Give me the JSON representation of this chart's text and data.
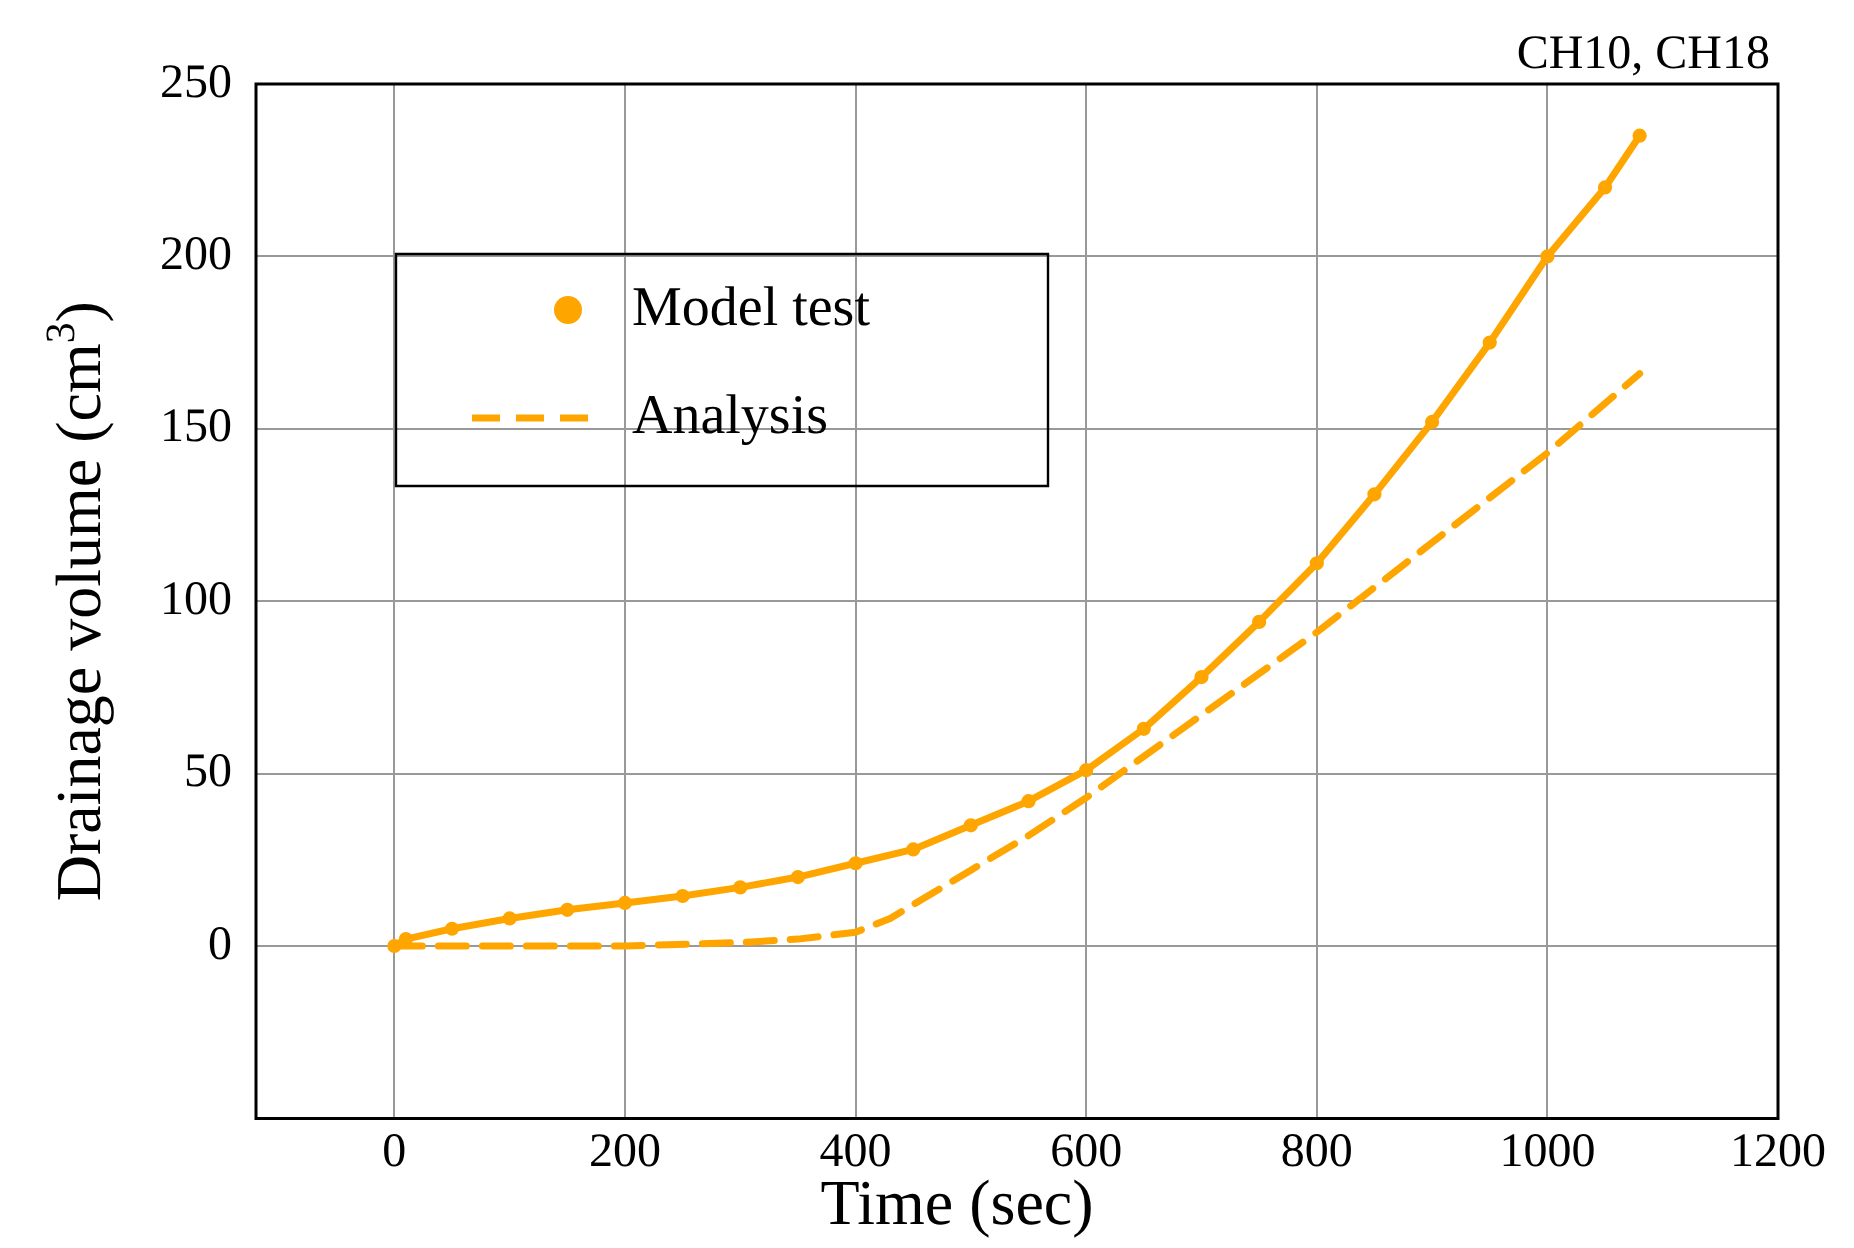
{
  "chart_data": {
    "type": "line",
    "xlabel": "Time (sec)",
    "ylabel": "Drainage volume (cm$^{3}$)",
    "annotations": [
      "CH10, CH18"
    ],
    "xlim": [
      -120,
      1200
    ],
    "xticks": [
      0,
      200,
      400,
      600,
      800,
      1000,
      1200
    ],
    "ylim": [
      -50,
      250
    ],
    "yticks": [
      0,
      50,
      100,
      150,
      200,
      250
    ],
    "grid": true,
    "legend": "top left",
    "series": [
      {
        "name": "Model test",
        "color": "#ffa500",
        "marker": "circle",
        "line_style": "solid",
        "x": [
          0,
          10,
          50,
          100,
          150,
          200,
          250,
          300,
          350,
          400,
          450,
          500,
          550,
          600,
          650,
          700,
          750,
          800,
          850,
          900,
          950,
          1000,
          1050,
          1080
        ],
        "values": [
          0,
          2,
          5,
          8,
          10.5,
          12.5,
          14.5,
          17,
          20,
          24,
          28,
          35,
          42,
          51,
          63,
          78,
          94,
          111,
          131,
          152,
          175,
          200,
          220,
          235
        ]
      },
      {
        "name": "Analysis",
        "color": "#ffa500",
        "marker": "none",
        "line_style": "dashed",
        "x": [
          0,
          100,
          200,
          300,
          350,
          400,
          430,
          450,
          500,
          550,
          600,
          650,
          700,
          800,
          900,
          1000,
          1080
        ],
        "values": [
          0,
          0,
          0,
          1,
          2,
          4,
          8,
          12,
          22,
          32,
          43,
          55,
          67,
          91,
          117,
          143,
          166
        ]
      }
    ]
  }
}
